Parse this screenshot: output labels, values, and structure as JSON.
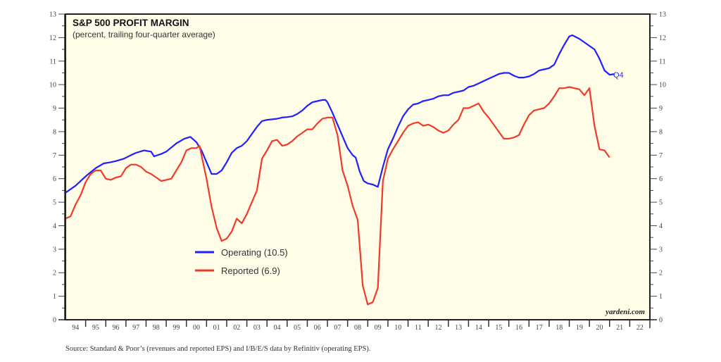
{
  "chart_data": {
    "type": "line",
    "title": "S&P 500 PROFIT MARGIN",
    "subtitle": "(percent, trailing four-quarter average)",
    "xlabel": "",
    "ylabel": "",
    "xlim": [
      1994,
      2023
    ],
    "ylim": [
      0,
      13
    ],
    "y_ticks": [
      "0",
      "1",
      "2",
      "3",
      "4",
      "5",
      "6",
      "7",
      "8",
      "9",
      "10",
      "11",
      "12",
      "13"
    ],
    "x_tick_labels": [
      "94",
      "95",
      "96",
      "97",
      "98",
      "99",
      "00",
      "01",
      "02",
      "03",
      "04",
      "05",
      "06",
      "07",
      "08",
      "09",
      "10",
      "11",
      "12",
      "13",
      "14",
      "15",
      "16",
      "17",
      "18",
      "19",
      "20",
      "21",
      "22"
    ],
    "grid": false,
    "background": "#fffde8",
    "legend": "middle-left",
    "annotation": "Q4",
    "credit": "yardeni.com",
    "source": "Source: Standard & Poor’s (revenues and reported EPS) and I/B/E/S data by Refinitiv (operating EPS).",
    "series": [
      {
        "name": "Operating",
        "legend_label": "Operating (10.5)",
        "color": "#1f1fff",
        "points": [
          [
            1994.0,
            5.4
          ],
          [
            1994.5,
            5.7
          ],
          [
            1995.0,
            6.1
          ],
          [
            1995.5,
            6.45
          ],
          [
            1995.9,
            6.65
          ],
          [
            1996.25,
            6.7
          ],
          [
            1996.5,
            6.75
          ],
          [
            1996.9,
            6.85
          ],
          [
            1997.25,
            7.0
          ],
          [
            1997.5,
            7.1
          ],
          [
            1997.9,
            7.2
          ],
          [
            1998.25,
            7.15
          ],
          [
            1998.4,
            6.95
          ],
          [
            1998.75,
            7.05
          ],
          [
            1999.0,
            7.15
          ],
          [
            1999.5,
            7.5
          ],
          [
            1999.9,
            7.7
          ],
          [
            2000.2,
            7.78
          ],
          [
            2000.5,
            7.55
          ],
          [
            2000.75,
            7.2
          ],
          [
            2001.0,
            6.7
          ],
          [
            2001.25,
            6.2
          ],
          [
            2001.5,
            6.2
          ],
          [
            2001.75,
            6.35
          ],
          [
            2002.0,
            6.7
          ],
          [
            2002.25,
            7.1
          ],
          [
            2002.5,
            7.3
          ],
          [
            2002.75,
            7.4
          ],
          [
            2003.0,
            7.6
          ],
          [
            2003.25,
            7.9
          ],
          [
            2003.5,
            8.2
          ],
          [
            2003.75,
            8.45
          ],
          [
            2004.0,
            8.5
          ],
          [
            2004.5,
            8.55
          ],
          [
            2004.75,
            8.6
          ],
          [
            2005.0,
            8.62
          ],
          [
            2005.25,
            8.65
          ],
          [
            2005.5,
            8.75
          ],
          [
            2005.75,
            8.9
          ],
          [
            2006.0,
            9.1
          ],
          [
            2006.25,
            9.25
          ],
          [
            2006.5,
            9.3
          ],
          [
            2006.75,
            9.35
          ],
          [
            2006.9,
            9.35
          ],
          [
            2007.0,
            9.25
          ],
          [
            2007.25,
            8.8
          ],
          [
            2007.5,
            8.3
          ],
          [
            2007.75,
            7.8
          ],
          [
            2008.0,
            7.3
          ],
          [
            2008.25,
            7.0
          ],
          [
            2008.4,
            6.9
          ],
          [
            2008.6,
            6.3
          ],
          [
            2008.8,
            5.9
          ],
          [
            2009.0,
            5.8
          ],
          [
            2009.25,
            5.75
          ],
          [
            2009.5,
            5.65
          ],
          [
            2009.75,
            6.5
          ],
          [
            2010.0,
            7.25
          ],
          [
            2010.25,
            7.7
          ],
          [
            2010.5,
            8.2
          ],
          [
            2010.75,
            8.65
          ],
          [
            2011.0,
            8.95
          ],
          [
            2011.25,
            9.15
          ],
          [
            2011.5,
            9.2
          ],
          [
            2011.75,
            9.3
          ],
          [
            2012.0,
            9.35
          ],
          [
            2012.25,
            9.4
          ],
          [
            2012.5,
            9.5
          ],
          [
            2012.75,
            9.55
          ],
          [
            2013.0,
            9.55
          ],
          [
            2013.25,
            9.65
          ],
          [
            2013.5,
            9.7
          ],
          [
            2013.75,
            9.75
          ],
          [
            2014.0,
            9.9
          ],
          [
            2014.25,
            9.95
          ],
          [
            2014.5,
            10.05
          ],
          [
            2014.75,
            10.15
          ],
          [
            2015.0,
            10.25
          ],
          [
            2015.25,
            10.35
          ],
          [
            2015.5,
            10.45
          ],
          [
            2015.75,
            10.5
          ],
          [
            2016.0,
            10.5
          ],
          [
            2016.25,
            10.38
          ],
          [
            2016.5,
            10.3
          ],
          [
            2016.75,
            10.3
          ],
          [
            2017.0,
            10.35
          ],
          [
            2017.25,
            10.45
          ],
          [
            2017.5,
            10.6
          ],
          [
            2017.75,
            10.65
          ],
          [
            2018.0,
            10.7
          ],
          [
            2018.25,
            10.85
          ],
          [
            2018.5,
            11.3
          ],
          [
            2018.75,
            11.7
          ],
          [
            2019.0,
            12.05
          ],
          [
            2019.15,
            12.1
          ],
          [
            2019.5,
            11.95
          ],
          [
            2019.75,
            11.8
          ],
          [
            2020.0,
            11.65
          ],
          [
            2020.25,
            11.5
          ],
          [
            2020.5,
            11.1
          ],
          [
            2020.75,
            10.6
          ],
          [
            2021.0,
            10.42
          ],
          [
            2021.25,
            10.45
          ]
        ]
      },
      {
        "name": "Reported",
        "legend_label": "Reported (6.9)",
        "color": "#f03a2a",
        "points": [
          [
            1994.0,
            4.3
          ],
          [
            1994.25,
            4.4
          ],
          [
            1994.5,
            4.9
          ],
          [
            1994.75,
            5.3
          ],
          [
            1995.0,
            5.85
          ],
          [
            1995.25,
            6.2
          ],
          [
            1995.5,
            6.35
          ],
          [
            1995.75,
            6.35
          ],
          [
            1996.0,
            6.0
          ],
          [
            1996.25,
            5.95
          ],
          [
            1996.5,
            6.05
          ],
          [
            1996.75,
            6.1
          ],
          [
            1997.0,
            6.45
          ],
          [
            1997.25,
            6.6
          ],
          [
            1997.5,
            6.6
          ],
          [
            1997.75,
            6.5
          ],
          [
            1998.0,
            6.3
          ],
          [
            1998.25,
            6.2
          ],
          [
            1998.5,
            6.05
          ],
          [
            1998.75,
            5.9
          ],
          [
            1999.0,
            5.95
          ],
          [
            1999.25,
            6.0
          ],
          [
            1999.5,
            6.35
          ],
          [
            1999.75,
            6.7
          ],
          [
            2000.0,
            7.2
          ],
          [
            2000.25,
            7.3
          ],
          [
            2000.5,
            7.3
          ],
          [
            2000.65,
            7.4
          ],
          [
            2001.0,
            6.0
          ],
          [
            2001.25,
            4.8
          ],
          [
            2001.5,
            3.9
          ],
          [
            2001.75,
            3.35
          ],
          [
            2002.0,
            3.45
          ],
          [
            2002.25,
            3.75
          ],
          [
            2002.5,
            4.3
          ],
          [
            2002.75,
            4.1
          ],
          [
            2003.0,
            4.5
          ],
          [
            2003.25,
            5.0
          ],
          [
            2003.5,
            5.5
          ],
          [
            2003.75,
            6.85
          ],
          [
            2004.0,
            7.2
          ],
          [
            2004.25,
            7.6
          ],
          [
            2004.5,
            7.65
          ],
          [
            2004.75,
            7.4
          ],
          [
            2005.0,
            7.45
          ],
          [
            2005.25,
            7.6
          ],
          [
            2005.5,
            7.8
          ],
          [
            2005.75,
            7.95
          ],
          [
            2006.0,
            8.1
          ],
          [
            2006.25,
            8.1
          ],
          [
            2006.5,
            8.35
          ],
          [
            2006.75,
            8.55
          ],
          [
            2007.0,
            8.6
          ],
          [
            2007.25,
            8.6
          ],
          [
            2007.5,
            7.85
          ],
          [
            2007.75,
            6.35
          ],
          [
            2008.0,
            5.7
          ],
          [
            2008.25,
            4.85
          ],
          [
            2008.5,
            4.25
          ],
          [
            2008.75,
            1.45
          ],
          [
            2009.0,
            0.65
          ],
          [
            2009.25,
            0.75
          ],
          [
            2009.5,
            1.35
          ],
          [
            2009.75,
            5.9
          ],
          [
            2010.0,
            6.85
          ],
          [
            2010.25,
            7.25
          ],
          [
            2010.5,
            7.6
          ],
          [
            2010.75,
            7.95
          ],
          [
            2011.0,
            8.25
          ],
          [
            2011.25,
            8.35
          ],
          [
            2011.5,
            8.4
          ],
          [
            2011.75,
            8.25
          ],
          [
            2012.0,
            8.3
          ],
          [
            2012.25,
            8.2
          ],
          [
            2012.5,
            8.05
          ],
          [
            2012.75,
            7.95
          ],
          [
            2013.0,
            8.05
          ],
          [
            2013.25,
            8.3
          ],
          [
            2013.5,
            8.5
          ],
          [
            2013.75,
            9.0
          ],
          [
            2014.0,
            9.0
          ],
          [
            2014.25,
            9.1
          ],
          [
            2014.5,
            9.2
          ],
          [
            2014.75,
            8.85
          ],
          [
            2015.0,
            8.6
          ],
          [
            2015.25,
            8.3
          ],
          [
            2015.5,
            8.0
          ],
          [
            2015.75,
            7.7
          ],
          [
            2016.0,
            7.7
          ],
          [
            2016.25,
            7.75
          ],
          [
            2016.5,
            7.85
          ],
          [
            2016.75,
            8.3
          ],
          [
            2017.0,
            8.7
          ],
          [
            2017.25,
            8.9
          ],
          [
            2017.5,
            8.95
          ],
          [
            2017.75,
            9.0
          ],
          [
            2018.0,
            9.2
          ],
          [
            2018.25,
            9.5
          ],
          [
            2018.5,
            9.85
          ],
          [
            2018.75,
            9.85
          ],
          [
            2019.0,
            9.9
          ],
          [
            2019.25,
            9.85
          ],
          [
            2019.5,
            9.8
          ],
          [
            2019.75,
            9.55
          ],
          [
            2020.0,
            9.85
          ],
          [
            2020.25,
            8.25
          ],
          [
            2020.5,
            7.25
          ],
          [
            2020.75,
            7.2
          ],
          [
            2021.0,
            6.9
          ]
        ]
      }
    ]
  }
}
